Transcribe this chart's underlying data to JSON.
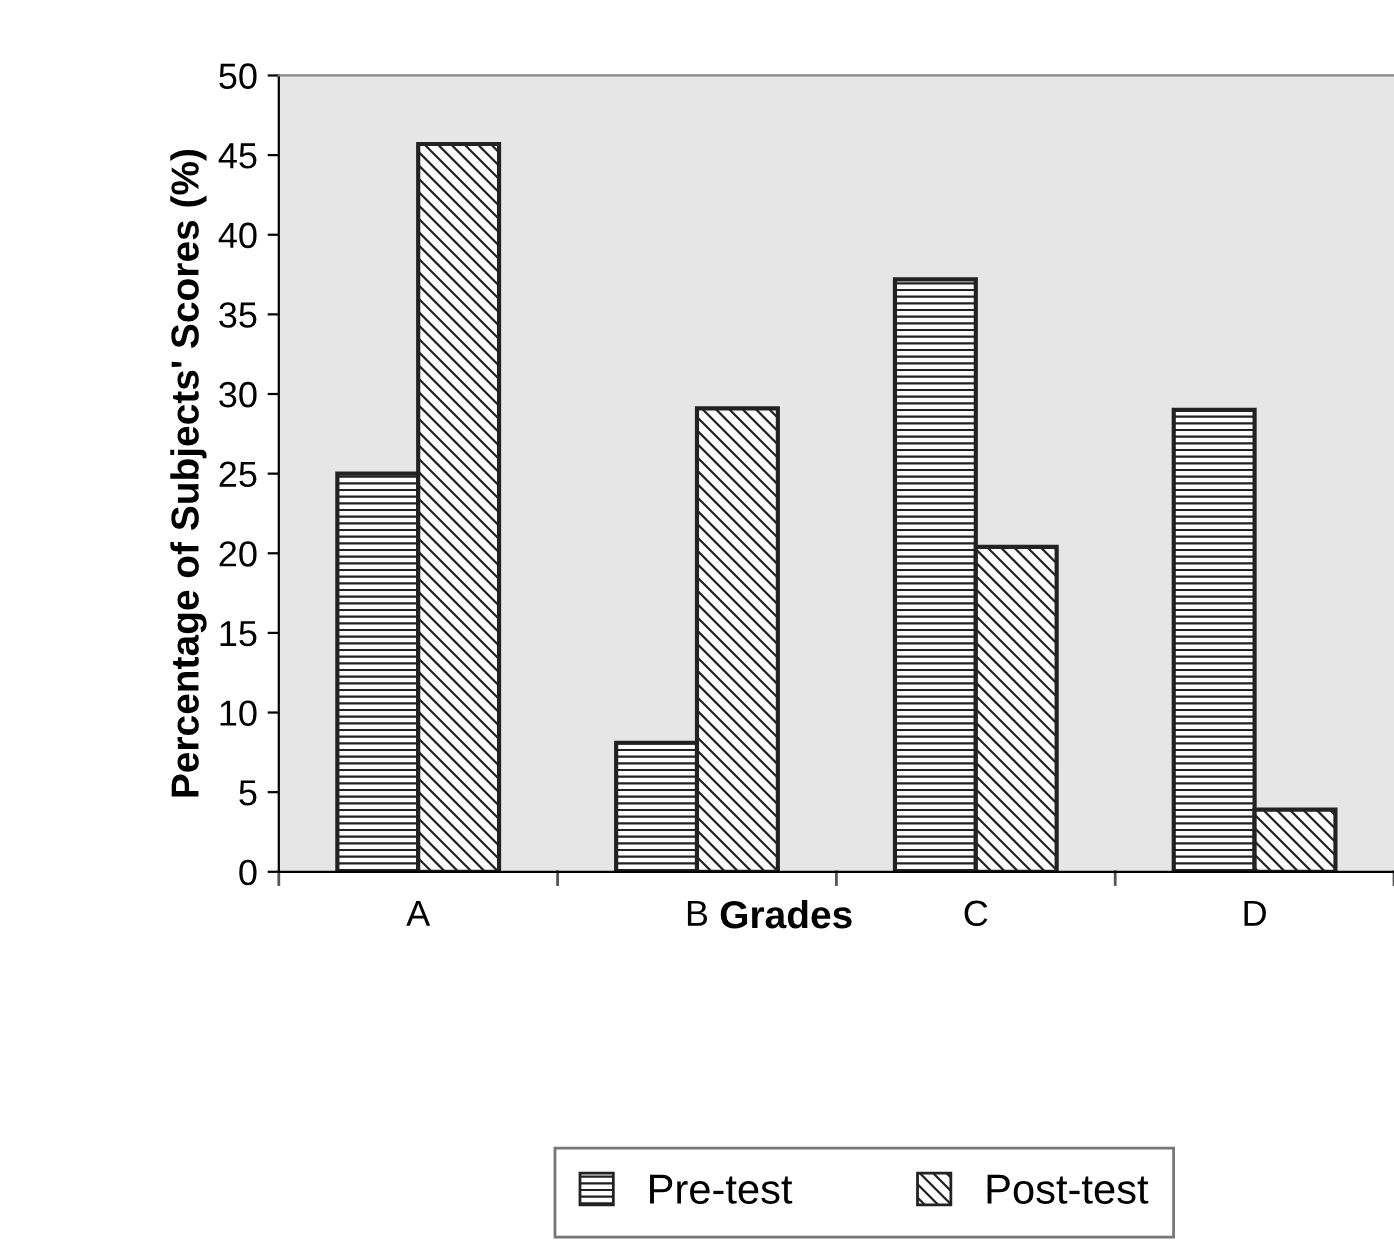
{
  "chart_data": {
    "type": "bar",
    "xlabel": "Grades",
    "ylabel": "Percentage of Subjects' Scores (%)",
    "categories": [
      "A",
      "B",
      "C",
      "D"
    ],
    "series": [
      {
        "name": "Pre-test",
        "color": "#222222",
        "values": [
          25,
          8.1,
          37.2,
          29
        ]
      },
      {
        "name": "Post-test",
        "color": "#222222",
        "values": [
          45.7,
          29.1,
          20.4,
          3.9
        ]
      }
    ],
    "ylim": [
      0,
      50
    ],
    "yticks": [
      0,
      5,
      10,
      15,
      20,
      25,
      30,
      35,
      40,
      45,
      50
    ],
    "grid": false,
    "legend": "bottom"
  }
}
